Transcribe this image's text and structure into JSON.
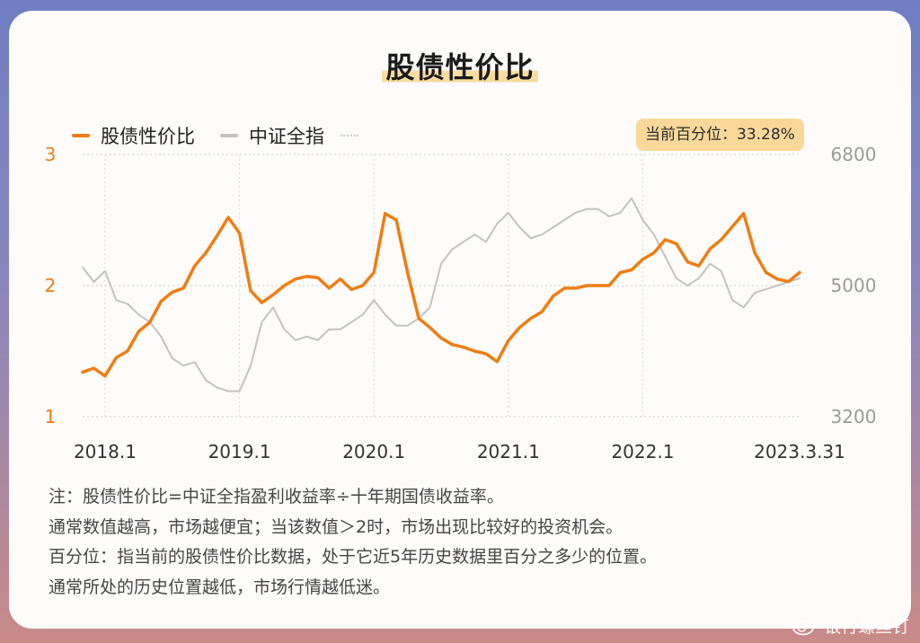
{
  "title": "股债性价比",
  "legend": {
    "series1": "股债性价比",
    "series2": "中证全指"
  },
  "badge": "当前百分位：33.28%",
  "colors": {
    "primary": "#f07d12",
    "secondary": "#c2c2c2",
    "badge_bg": "#f9d89a"
  },
  "notes": [
    "注：股债性价比=中证全指盈利收益率÷十年期国债收益率。",
    "通常数值越高，市场越便宜；当该数值＞2时，市场出现比较好的投资机会。",
    "百分位：指当前的股债性价比数据，处于它近5年历史数据里百分之多少的位置。",
    "通常所处的历史位置越低，市场行情越低迷。"
  ],
  "watermark": "银行螺丝钉",
  "chart_data": {
    "type": "line",
    "title": "股债性价比",
    "x_tick_labels": [
      "2018.1",
      "2019.1",
      "2020.1",
      "2021.1",
      "2022.1",
      "2023.3.31"
    ],
    "y_left": {
      "range": [
        1,
        3
      ],
      "ticks": [
        "1",
        "2",
        "3"
      ]
    },
    "y_right": {
      "range": [
        3200,
        6800
      ],
      "ticks": [
        "3200",
        "5000",
        "6800"
      ]
    },
    "grid": true,
    "legend_position": "top-left",
    "series": [
      {
        "name": "股债性价比",
        "axis": "left",
        "x": [
          "2017-11",
          "2017-12",
          "2018-01",
          "2018-02",
          "2018-03",
          "2018-04",
          "2018-05",
          "2018-06",
          "2018-07",
          "2018-08",
          "2018-09",
          "2018-10",
          "2018-11",
          "2018-12",
          "2019-01",
          "2019-02",
          "2019-03",
          "2019-04",
          "2019-05",
          "2019-06",
          "2019-07",
          "2019-08",
          "2019-09",
          "2019-10",
          "2019-11",
          "2019-12",
          "2020-01",
          "2020-02",
          "2020-03",
          "2020-04",
          "2020-05",
          "2020-06",
          "2020-07",
          "2020-08",
          "2020-09",
          "2020-10",
          "2020-11",
          "2020-12",
          "2021-01",
          "2021-02",
          "2021-03",
          "2021-04",
          "2021-05",
          "2021-06",
          "2021-07",
          "2021-08",
          "2021-09",
          "2021-10",
          "2021-11",
          "2021-12",
          "2022-01",
          "2022-02",
          "2022-03",
          "2022-04",
          "2022-05",
          "2022-06",
          "2022-07",
          "2022-08",
          "2022-09",
          "2022-10",
          "2022-11",
          "2022-12",
          "2023-01",
          "2023-02",
          "2023-03"
        ],
        "values": [
          1.34,
          1.37,
          1.31,
          1.45,
          1.5,
          1.65,
          1.72,
          1.88,
          1.95,
          1.98,
          2.15,
          2.25,
          2.38,
          2.52,
          2.4,
          1.96,
          1.87,
          1.93,
          2.0,
          2.05,
          2.07,
          2.06,
          1.98,
          2.05,
          1.97,
          2.0,
          2.1,
          2.55,
          2.5,
          2.1,
          1.75,
          1.68,
          1.6,
          1.55,
          1.53,
          1.5,
          1.48,
          1.42,
          1.58,
          1.68,
          1.75,
          1.8,
          1.92,
          1.98,
          1.98,
          2.0,
          2.0,
          2.0,
          2.1,
          2.12,
          2.2,
          2.25,
          2.35,
          2.32,
          2.18,
          2.15,
          2.28,
          2.35,
          2.45,
          2.55,
          2.25,
          2.1,
          2.05,
          2.03,
          2.1
        ]
      },
      {
        "name": "中证全指",
        "axis": "right",
        "x": [
          "2017-11",
          "2017-12",
          "2018-01",
          "2018-02",
          "2018-03",
          "2018-04",
          "2018-05",
          "2018-06",
          "2018-07",
          "2018-08",
          "2018-09",
          "2018-10",
          "2018-11",
          "2018-12",
          "2019-01",
          "2019-02",
          "2019-03",
          "2019-04",
          "2019-05",
          "2019-06",
          "2019-07",
          "2019-08",
          "2019-09",
          "2019-10",
          "2019-11",
          "2019-12",
          "2020-01",
          "2020-02",
          "2020-03",
          "2020-04",
          "2020-05",
          "2020-06",
          "2020-07",
          "2020-08",
          "2020-09",
          "2020-10",
          "2020-11",
          "2020-12",
          "2021-01",
          "2021-02",
          "2021-03",
          "2021-04",
          "2021-05",
          "2021-06",
          "2021-07",
          "2021-08",
          "2021-09",
          "2021-10",
          "2021-11",
          "2021-12",
          "2022-01",
          "2022-02",
          "2022-03",
          "2022-04",
          "2022-05",
          "2022-06",
          "2022-07",
          "2022-08",
          "2022-09",
          "2022-10",
          "2022-11",
          "2022-12",
          "2023-01",
          "2023-02",
          "2023-03"
        ],
        "values": [
          5250,
          5050,
          5200,
          4800,
          4750,
          4600,
          4500,
          4300,
          4000,
          3900,
          3950,
          3700,
          3600,
          3550,
          3550,
          3900,
          4500,
          4700,
          4400,
          4250,
          4300,
          4250,
          4400,
          4400,
          4500,
          4600,
          4800,
          4600,
          4450,
          4450,
          4550,
          4700,
          5300,
          5500,
          5600,
          5700,
          5600,
          5850,
          6000,
          5800,
          5650,
          5700,
          5800,
          5900,
          6000,
          6050,
          6050,
          5950,
          6000,
          6200,
          5900,
          5700,
          5400,
          5100,
          5000,
          5100,
          5300,
          5200,
          4800,
          4700,
          4900,
          4950,
          5000,
          5050,
          5100
        ]
      }
    ]
  }
}
